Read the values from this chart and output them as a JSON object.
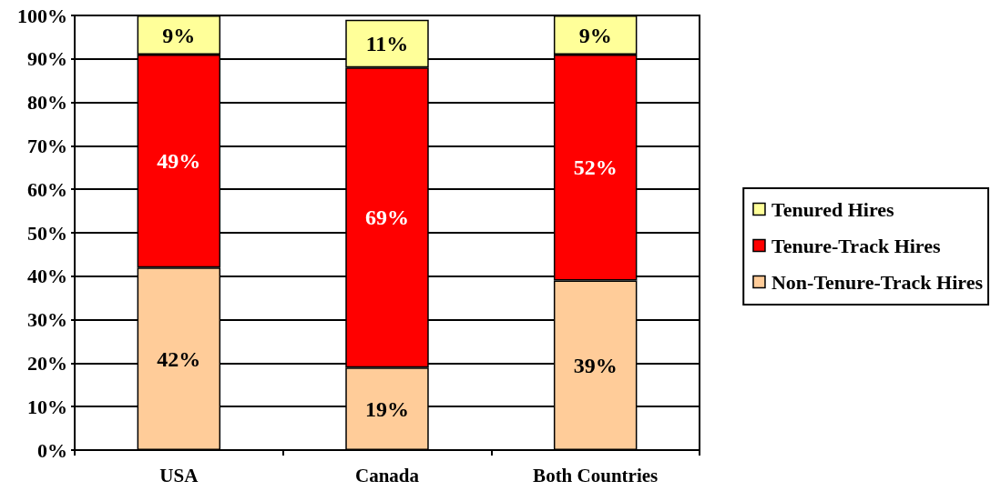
{
  "chart_data": {
    "type": "bar",
    "stacked": true,
    "categories": [
      "USA",
      "Canada",
      "Both Countries"
    ],
    "series": [
      {
        "name": "Non-Tenure-Track Hires",
        "color": "#ffcc99",
        "values": [
          42,
          19,
          39
        ],
        "value_labels": [
          "42%",
          "19%",
          "39%"
        ]
      },
      {
        "name": "Tenure-Track Hires",
        "color": "#ff0000",
        "values": [
          49,
          69,
          52
        ],
        "value_labels": [
          "49%",
          "69%",
          "52%"
        ]
      },
      {
        "name": "Tenured Hires",
        "color": "#ffff99",
        "values": [
          9,
          11,
          9
        ],
        "value_labels": [
          "9%",
          "11%",
          "9%"
        ]
      }
    ],
    "ylim": [
      0,
      100
    ],
    "yticks": [
      {
        "value": 0,
        "label": "0%"
      },
      {
        "value": 10,
        "label": "10%"
      },
      {
        "value": 20,
        "label": "20%"
      },
      {
        "value": 30,
        "label": "30%"
      },
      {
        "value": 40,
        "label": "40%"
      },
      {
        "value": 50,
        "label": "50%"
      },
      {
        "value": 60,
        "label": "60%"
      },
      {
        "value": 70,
        "label": "70%"
      },
      {
        "value": 80,
        "label": "80%"
      },
      {
        "value": 90,
        "label": "90%"
      },
      {
        "value": 100,
        "label": "100%"
      }
    ],
    "grid": "y",
    "legend": "right"
  }
}
